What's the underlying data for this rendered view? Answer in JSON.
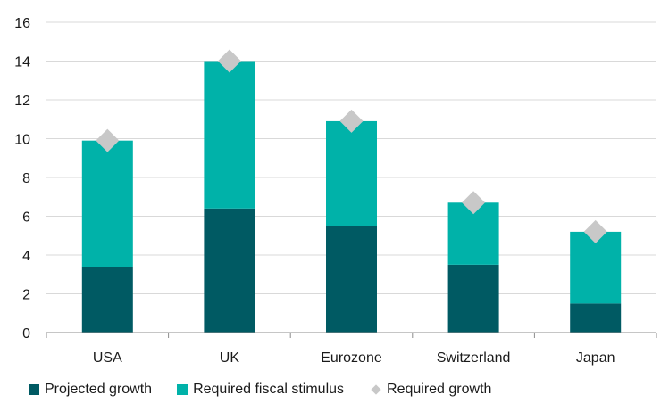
{
  "chart_data": {
    "type": "bar",
    "stacked": true,
    "categories": [
      "USA",
      "UK",
      "Eurozone",
      "Switzerland",
      "Japan"
    ],
    "series": [
      {
        "name": "Projected growth",
        "kind": "bar",
        "values": [
          3.4,
          6.4,
          5.5,
          3.5,
          1.5
        ],
        "color": "#005a63"
      },
      {
        "name": "Required fiscal stimulus",
        "kind": "bar",
        "values": [
          6.5,
          7.6,
          5.4,
          3.2,
          3.7
        ],
        "color": "#00b2a9"
      },
      {
        "name": "Required growth",
        "kind": "marker",
        "marker": "diamond",
        "values": [
          9.9,
          14.0,
          10.9,
          6.7,
          5.2
        ],
        "color": "#c8c8c8"
      }
    ],
    "y_ticks": [
      "0",
      "2",
      "4",
      "6",
      "8",
      "10",
      "12",
      "14",
      "16"
    ],
    "ylim": [
      0,
      16
    ],
    "grid": true,
    "legend_position": "bottom"
  }
}
